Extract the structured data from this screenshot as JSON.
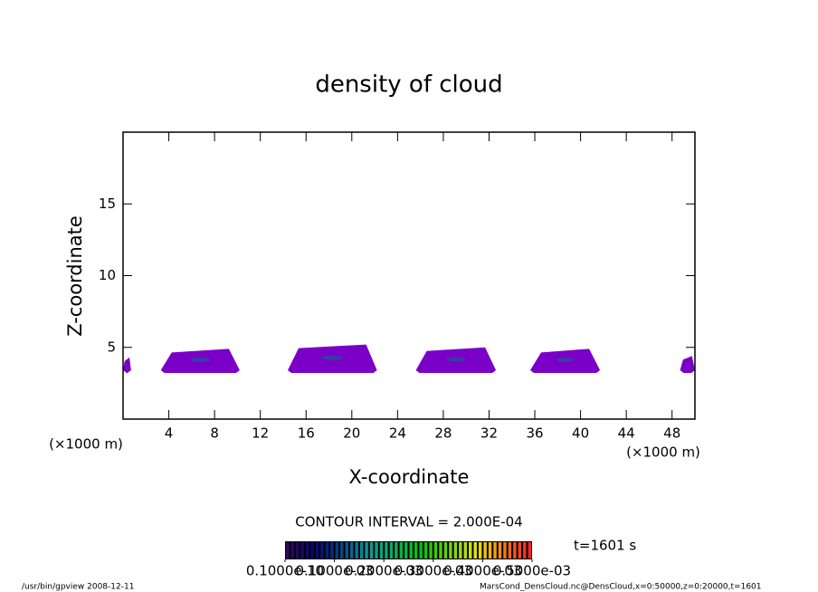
{
  "chart_data": {
    "type": "contour",
    "title": "density of cloud",
    "xlabel": "X-coordinate",
    "ylabel": "Z-coordinate",
    "xunit": "(×1000 m)",
    "yunit": "(×1000 m)",
    "xlim": [
      0,
      50
    ],
    "ylim": [
      0,
      20
    ],
    "xticks": [
      4,
      8,
      12,
      16,
      20,
      24,
      28,
      32,
      36,
      40,
      44,
      48
    ],
    "yticks": [
      5,
      10,
      15
    ],
    "color": "#7a00c8",
    "core_color": "#3a3aa8",
    "clouds": [
      {
        "x": [
          0,
          0.7
        ],
        "z": [
          3.6,
          4.3
        ]
      },
      {
        "x": [
          3.3,
          10.2
        ],
        "z": [
          3.6,
          4.9
        ]
      },
      {
        "x": [
          14.4,
          22.2
        ],
        "z": [
          3.6,
          5.2
        ]
      },
      {
        "x": [
          25.6,
          32.6
        ],
        "z": [
          3.6,
          5.0
        ]
      },
      {
        "x": [
          35.6,
          41.7
        ],
        "z": [
          3.6,
          4.9
        ]
      },
      {
        "x": [
          48.7,
          50
        ],
        "z": [
          3.6,
          4.4
        ]
      }
    ],
    "contour_interval": "CONTOUR INTERVAL = 2.000E-04",
    "time": "t=1601 s",
    "clim": [
      0,
      0.0005
    ],
    "cticks": [
      {
        "value": 1e-11,
        "label": "0.1000e-10"
      },
      {
        "value": 0.0001,
        "label": "0.1000e-03"
      },
      {
        "value": 0.0002,
        "label": "0.2000e-03"
      },
      {
        "value": 0.0003,
        "label": "0.3000e-03"
      },
      {
        "value": 0.0004,
        "label": "0.4000e-03"
      },
      {
        "value": 0.0005,
        "label": "0.5000e-03"
      }
    ],
    "footer_left": "/usr/bin/gpview   2008-12-11",
    "footer_right": "MarsCond_DensCloud.nc@DensCloud,x=0:50000,z=0:20000,t=1601"
  }
}
